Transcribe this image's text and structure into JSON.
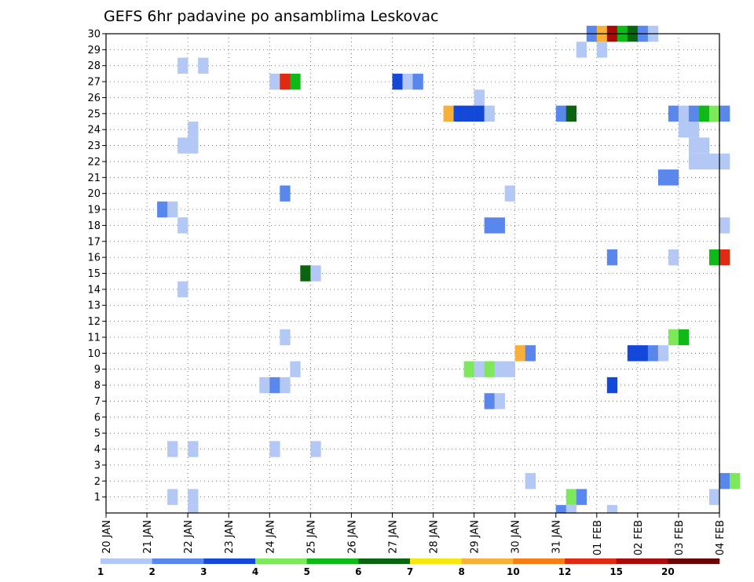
{
  "chart_data": {
    "type": "heatmap",
    "title": "GEFS 6hr padavine po ansamblima Leskovac",
    "xlabel": "",
    "ylabel": "",
    "x_tick_labels": [
      "20 JAN",
      "21 JAN",
      "22 JAN",
      "23 JAN",
      "24 JAN",
      "25 JAN",
      "26 JAN",
      "27 JAN",
      "28 JAN",
      "29 JAN",
      "30 JAN",
      "31 JAN",
      "01 FEB",
      "02 FEB",
      "03 FEB",
      "04 FEB"
    ],
    "y_tick_labels": [
      "1",
      "2",
      "3",
      "4",
      "5",
      "6",
      "7",
      "8",
      "9",
      "10",
      "11",
      "12",
      "13",
      "14",
      "15",
      "16",
      "17",
      "18",
      "19",
      "20",
      "21",
      "22",
      "23",
      "24",
      "25",
      "26",
      "27",
      "28",
      "29",
      "30"
    ],
    "ylim": [
      0,
      30
    ],
    "time_steps_per_day": 4,
    "grid": true,
    "colorbar": {
      "placement": "bottom",
      "tick_labels": [
        "1",
        "2",
        "3",
        "4",
        "5",
        "6",
        "7",
        "8",
        "10",
        "12",
        "15",
        "20"
      ],
      "colors": [
        "#b3c8f5",
        "#5a87ec",
        "#1448d8",
        "#7ce85a",
        "#10b818",
        "#0a6410",
        "#f5e810",
        "#f7b03a",
        "#f57f15",
        "#e02a12",
        "#a80c08",
        "#6a0505"
      ]
    },
    "cells": [
      {
        "step": 47,
        "member": 30,
        "bin": 2
      },
      {
        "step": 48,
        "member": 30,
        "bin": 8
      },
      {
        "step": 49,
        "member": 30,
        "bin": 11
      },
      {
        "step": 50,
        "member": 30,
        "bin": 5
      },
      {
        "step": 51,
        "member": 30,
        "bin": 6
      },
      {
        "step": 52,
        "member": 30,
        "bin": 2
      },
      {
        "step": 53,
        "member": 30,
        "bin": 1
      },
      {
        "step": 46,
        "member": 29,
        "bin": 1
      },
      {
        "step": 48,
        "member": 29,
        "bin": 1
      },
      {
        "step": 7,
        "member": 28,
        "bin": 1
      },
      {
        "step": 9,
        "member": 28,
        "bin": 1
      },
      {
        "step": 16,
        "member": 27,
        "bin": 1
      },
      {
        "step": 17,
        "member": 27,
        "bin": 10
      },
      {
        "step": 18,
        "member": 27,
        "bin": 5
      },
      {
        "step": 28,
        "member": 27,
        "bin": 3
      },
      {
        "step": 29,
        "member": 27,
        "bin": 1
      },
      {
        "step": 30,
        "member": 27,
        "bin": 2
      },
      {
        "step": 36,
        "member": 26,
        "bin": 1
      },
      {
        "step": 33,
        "member": 25,
        "bin": 8
      },
      {
        "step": 34,
        "member": 25,
        "bin": 3
      },
      {
        "step": 35,
        "member": 25,
        "bin": 3
      },
      {
        "step": 36,
        "member": 25,
        "bin": 3
      },
      {
        "step": 37,
        "member": 25,
        "bin": 1
      },
      {
        "step": 44,
        "member": 25,
        "bin": 2
      },
      {
        "step": 45,
        "member": 25,
        "bin": 6
      },
      {
        "step": 55,
        "member": 25,
        "bin": 2
      },
      {
        "step": 56,
        "member": 25,
        "bin": 1
      },
      {
        "step": 57,
        "member": 25,
        "bin": 2
      },
      {
        "step": 58,
        "member": 25,
        "bin": 5
      },
      {
        "step": 59,
        "member": 25,
        "bin": 4
      },
      {
        "step": 60,
        "member": 25,
        "bin": 2
      },
      {
        "step": 8,
        "member": 24,
        "bin": 1
      },
      {
        "step": 56,
        "member": 24,
        "bin": 1
      },
      {
        "step": 57,
        "member": 24,
        "bin": 1
      },
      {
        "step": 7,
        "member": 23,
        "bin": 1
      },
      {
        "step": 8,
        "member": 23,
        "bin": 1
      },
      {
        "step": 57,
        "member": 23,
        "bin": 1
      },
      {
        "step": 58,
        "member": 23,
        "bin": 1
      },
      {
        "step": 57,
        "member": 22,
        "bin": 1
      },
      {
        "step": 58,
        "member": 22,
        "bin": 1
      },
      {
        "step": 59,
        "member": 22,
        "bin": 1
      },
      {
        "step": 60,
        "member": 22,
        "bin": 1
      },
      {
        "step": 54,
        "member": 21,
        "bin": 2
      },
      {
        "step": 55,
        "member": 21,
        "bin": 2
      },
      {
        "step": 17,
        "member": 20,
        "bin": 2
      },
      {
        "step": 39,
        "member": 20,
        "bin": 1
      },
      {
        "step": 5,
        "member": 19,
        "bin": 2
      },
      {
        "step": 6,
        "member": 19,
        "bin": 1
      },
      {
        "step": 7,
        "member": 18,
        "bin": 1
      },
      {
        "step": 37,
        "member": 18,
        "bin": 2
      },
      {
        "step": 38,
        "member": 18,
        "bin": 2
      },
      {
        "step": 60,
        "member": 18,
        "bin": 1
      },
      {
        "step": 49,
        "member": 16,
        "bin": 2
      },
      {
        "step": 55,
        "member": 16,
        "bin": 1
      },
      {
        "step": 59,
        "member": 16,
        "bin": 5
      },
      {
        "step": 60,
        "member": 16,
        "bin": 10
      },
      {
        "step": 19,
        "member": 15,
        "bin": 6
      },
      {
        "step": 20,
        "member": 15,
        "bin": 1
      },
      {
        "step": 7,
        "member": 14,
        "bin": 1
      },
      {
        "step": 17,
        "member": 11,
        "bin": 1
      },
      {
        "step": 55,
        "member": 11,
        "bin": 4
      },
      {
        "step": 56,
        "member": 11,
        "bin": 5
      },
      {
        "step": 40,
        "member": 10,
        "bin": 8
      },
      {
        "step": 41,
        "member": 10,
        "bin": 2
      },
      {
        "step": 51,
        "member": 10,
        "bin": 3
      },
      {
        "step": 52,
        "member": 10,
        "bin": 3
      },
      {
        "step": 53,
        "member": 10,
        "bin": 2
      },
      {
        "step": 54,
        "member": 10,
        "bin": 1
      },
      {
        "step": 18,
        "member": 9,
        "bin": 1
      },
      {
        "step": 35,
        "member": 9,
        "bin": 4
      },
      {
        "step": 36,
        "member": 9,
        "bin": 1
      },
      {
        "step": 37,
        "member": 9,
        "bin": 4
      },
      {
        "step": 38,
        "member": 9,
        "bin": 1
      },
      {
        "step": 39,
        "member": 9,
        "bin": 1
      },
      {
        "step": 15,
        "member": 8,
        "bin": 1
      },
      {
        "step": 16,
        "member": 8,
        "bin": 2
      },
      {
        "step": 17,
        "member": 8,
        "bin": 1
      },
      {
        "step": 49,
        "member": 8,
        "bin": 3
      },
      {
        "step": 37,
        "member": 7,
        "bin": 2
      },
      {
        "step": 38,
        "member": 7,
        "bin": 1
      },
      {
        "step": 6,
        "member": 4,
        "bin": 1
      },
      {
        "step": 8,
        "member": 4,
        "bin": 1
      },
      {
        "step": 16,
        "member": 4,
        "bin": 1
      },
      {
        "step": 20,
        "member": 4,
        "bin": 1
      },
      {
        "step": 41,
        "member": 2,
        "bin": 1
      },
      {
        "step": 60,
        "member": 2,
        "bin": 2
      },
      {
        "step": 61,
        "member": 2,
        "bin": 4
      },
      {
        "step": 6,
        "member": 1,
        "bin": 1
      },
      {
        "step": 8,
        "member": 1,
        "bin": 1
      },
      {
        "step": 45,
        "member": 1,
        "bin": 4
      },
      {
        "step": 46,
        "member": 1,
        "bin": 2
      },
      {
        "step": 59,
        "member": 1,
        "bin": 1
      },
      {
        "step": 8,
        "member": 0,
        "bin": 1
      },
      {
        "step": 44,
        "member": 0,
        "bin": 2
      },
      {
        "step": 45,
        "member": 0,
        "bin": 1
      },
      {
        "step": 49,
        "member": 0,
        "bin": 1
      }
    ]
  }
}
